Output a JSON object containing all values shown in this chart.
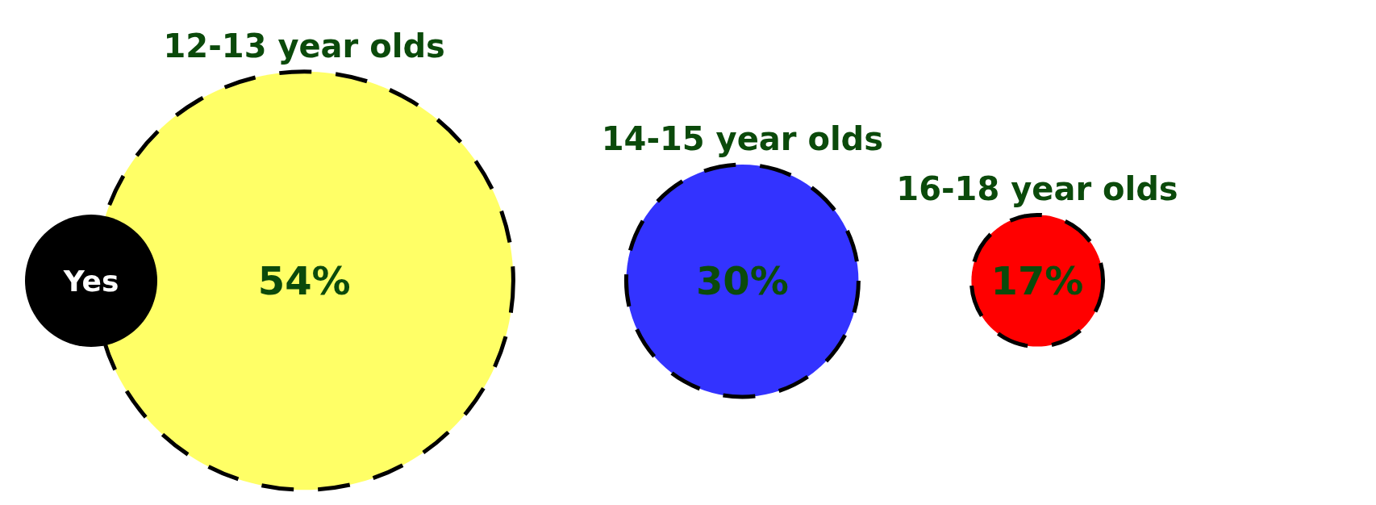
{
  "chart_data": {
    "type": "other",
    "categories": [
      "12-13 year olds",
      "14-15 year olds",
      "16-18 year olds"
    ],
    "values": [
      54,
      30,
      17
    ],
    "value_labels": [
      "54%",
      "30%",
      "17%"
    ],
    "colors": [
      "#ffff66",
      "#3333ff",
      "#ff0000"
    ],
    "annotations": [
      "Yes"
    ]
  }
}
